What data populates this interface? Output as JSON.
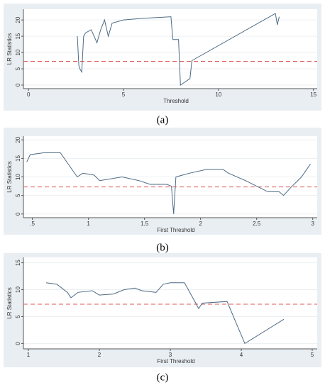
{
  "chart_data": [
    {
      "type": "line",
      "caption": "(a)",
      "xlabel": "Threshold",
      "ylabel": "LR Statistics",
      "x": [
        2.57,
        2.65,
        2.7,
        2.8,
        2.9,
        3.0,
        3.3,
        3.45,
        3.6,
        3.8,
        4.0,
        4.2,
        4.4,
        5.0,
        6.0,
        7.5,
        7.6,
        7.9,
        8.0,
        8.5,
        8.6,
        13.0,
        13.1,
        13.2
      ],
      "values": [
        15,
        6,
        5,
        4,
        15,
        16,
        17,
        15,
        13,
        17,
        20,
        15,
        19,
        20,
        20.5,
        21,
        14,
        14,
        0,
        2,
        7.5,
        22,
        18.5,
        21
      ],
      "color": "#4d6a85",
      "reference_line": 7.3,
      "reference_color": "#e05a5a",
      "xlim": [
        -0.27,
        15.2
      ],
      "xticks": [
        0,
        5,
        10,
        15
      ],
      "ylim": [
        -1.1,
        23.3
      ],
      "yticks": [
        0,
        5,
        10,
        15,
        20
      ],
      "grid": true
    },
    {
      "type": "line",
      "caption": "(b)",
      "xlabel": "First Threshold",
      "ylabel": "LR Statistics",
      "x": [
        0.45,
        0.48,
        0.6,
        0.75,
        0.9,
        0.95,
        1.05,
        1.1,
        1.3,
        1.45,
        1.55,
        1.7,
        1.74,
        1.76,
        1.78,
        1.9,
        2.05,
        2.2,
        2.25,
        2.4,
        2.5,
        2.6,
        2.7,
        2.74,
        2.8,
        2.9,
        2.98
      ],
      "values": [
        14,
        16,
        16.5,
        16.5,
        10,
        11,
        10.5,
        9,
        10,
        9,
        8,
        8,
        7.5,
        0,
        10,
        11,
        12,
        12,
        11,
        9,
        7.5,
        6,
        6,
        5,
        7,
        10,
        13.5
      ],
      "color": "#4d6a85",
      "reference_line": 7.3,
      "reference_color": "#e05a5a",
      "xlim": [
        0.42,
        3.04
      ],
      "xticks": [
        {
          "value": 0.5,
          "label": ".5"
        },
        1,
        1.5,
        2,
        2.5,
        3
      ],
      "ylim": [
        -1,
        21
      ],
      "yticks": [
        0,
        5,
        10,
        15,
        20
      ],
      "grid": true
    },
    {
      "type": "line",
      "caption": "(c)",
      "xlabel": "First Threshold",
      "ylabel": "LR Statistics",
      "x": [
        1.25,
        1.4,
        1.55,
        1.6,
        1.7,
        1.9,
        2.0,
        2.2,
        2.35,
        2.5,
        2.6,
        2.8,
        2.9,
        3.0,
        3.2,
        3.4,
        3.45,
        3.8,
        4.05,
        4.6
      ],
      "values": [
        11.3,
        11,
        9.5,
        8.5,
        9.5,
        9.8,
        9,
        9.2,
        10,
        10.3,
        9.8,
        9.5,
        11,
        11.3,
        11.3,
        6.5,
        7.5,
        7.8,
        0,
        4.5
      ],
      "color": "#4d6a85",
      "reference_line": 7.3,
      "reference_color": "#e05a5a",
      "xlim": [
        0.93,
        5.07
      ],
      "xticks": [
        1,
        2,
        3,
        4,
        5
      ],
      "ylim": [
        -1,
        16
      ],
      "yticks": [
        0,
        5,
        10,
        15
      ],
      "grid": true
    }
  ]
}
